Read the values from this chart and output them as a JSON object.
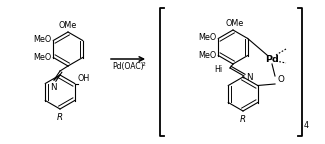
{
  "background_color": "#ffffff",
  "figsize": [
    3.25,
    1.44
  ],
  "dpi": 100,
  "reagent_text": "Pd(OAC)",
  "reagent_sub": "2",
  "subscript4": "4",
  "lw": 0.8,
  "col": "#000000"
}
